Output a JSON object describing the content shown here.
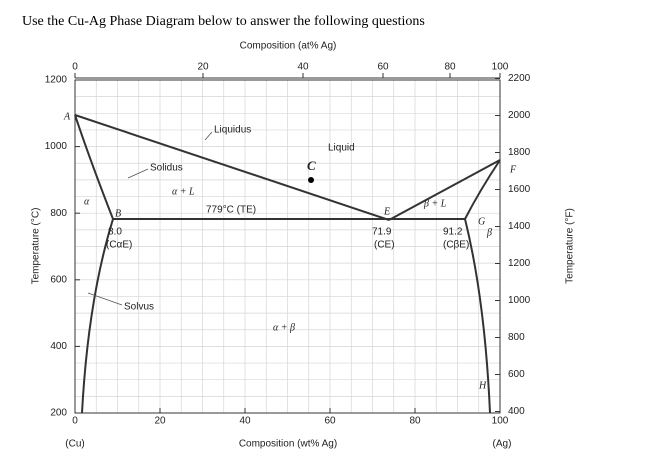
{
  "title": "Use the Cu-Ag Phase Diagram below to answer the following questions",
  "axes": {
    "top": {
      "label": "Composition (at% Ag)",
      "ticks": [
        0,
        20,
        40,
        60,
        80,
        100
      ]
    },
    "bottom": {
      "label": "Composition (wt% Ag)",
      "ticks": [
        0,
        20,
        40,
        60,
        80,
        100
      ]
    },
    "left": {
      "label": "Temperature (°C)",
      "ticks": [
        200,
        400,
        600,
        800,
        1000,
        1200
      ]
    },
    "right": {
      "label": "Temperature (°F)",
      "ticks": [
        400,
        600,
        800,
        1000,
        1200,
        1400,
        1600,
        1800,
        2000,
        2200
      ]
    },
    "left_end": "(Cu)",
    "right_end": "(Ag)"
  },
  "regions": {
    "liquid": "Liquid",
    "alpha_l": "α + L",
    "beta_l": "β + L",
    "alpha": "α",
    "beta": "β",
    "alpha_beta": "α + β"
  },
  "curves": {
    "liquidus": "Liquidus",
    "solidus": "Solidus",
    "solvus": "Solvus"
  },
  "eutectic": {
    "temperature": "779°C (TE)",
    "c_alpha": "8.0",
    "c_alpha_label": "(CαE)",
    "c_e": "71.9",
    "c_e_label": "(CE)",
    "c_beta": "91.2",
    "c_beta_label": "(CβE)"
  },
  "points": {
    "a": "A",
    "b": "B",
    "c": "C",
    "e": "E",
    "f": "F",
    "g": "G",
    "h": "H"
  }
}
